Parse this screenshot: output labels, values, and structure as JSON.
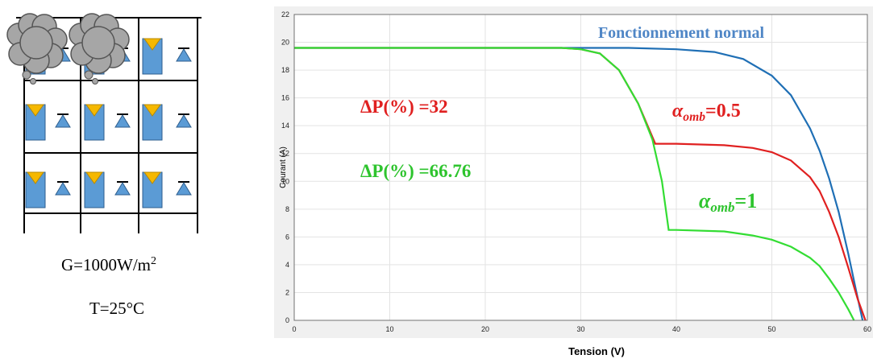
{
  "diagram": {
    "irradiance": {
      "text": "G=1000W/m",
      "superscript": "2"
    },
    "temperature": "T=25°C"
  },
  "chart_data": {
    "type": "line",
    "xlabel": "Tension (V)",
    "ylabel": "Courant (A)",
    "xlim": [
      0,
      60
    ],
    "xticks": [
      0,
      10,
      20,
      30,
      40,
      50,
      60
    ],
    "ylim": [
      0,
      22
    ],
    "yticks": [
      0,
      2,
      4,
      6,
      8,
      10,
      12,
      14,
      16,
      18,
      20,
      22
    ],
    "grid": true,
    "series": [
      {
        "color": "#1f6fb5",
        "x": [
          0,
          10,
          20,
          30,
          35,
          40,
          44,
          47,
          50,
          52,
          54,
          55,
          56,
          57,
          58,
          58.8,
          59.5
        ],
        "values": [
          19.6,
          19.6,
          19.6,
          19.6,
          19.6,
          19.5,
          19.3,
          18.8,
          17.6,
          16.2,
          13.8,
          12.2,
          10.2,
          7.8,
          4.8,
          2.2,
          0
        ]
      },
      {
        "color": "#e02020",
        "x": [
          0,
          10,
          20,
          28,
          30,
          32,
          34,
          36,
          37.8,
          40,
          45,
          48,
          50,
          52,
          54,
          55,
          56,
          57,
          58,
          59,
          59.8
        ],
        "values": [
          19.6,
          19.6,
          19.6,
          19.6,
          19.5,
          19.2,
          18.0,
          15.6,
          12.7,
          12.7,
          12.6,
          12.4,
          12.1,
          11.5,
          10.3,
          9.3,
          7.8,
          6.0,
          3.8,
          1.5,
          0
        ]
      },
      {
        "color": "#33dd33",
        "x": [
          0,
          10,
          20,
          28,
          30,
          32,
          34,
          36,
          37.5,
          38.5,
          39.2,
          40,
          45,
          48,
          50,
          52,
          54,
          55,
          56,
          57,
          58,
          58.6
        ],
        "values": [
          19.6,
          19.6,
          19.6,
          19.6,
          19.5,
          19.2,
          18.0,
          15.6,
          13.0,
          10.0,
          6.5,
          6.5,
          6.4,
          6.1,
          5.8,
          5.3,
          4.5,
          3.9,
          3.0,
          2.0,
          0.8,
          0
        ]
      }
    ],
    "annotations": [
      {
        "text": "Fonctionnement normal",
        "color": "#4f86c6"
      },
      {
        "text": "ΔP(%) =32",
        "color": "#e02020"
      },
      {
        "text": "ΔP(%) =66.76",
        "color": "#2ec42e"
      },
      {
        "symbol": "α",
        "subscript": "omb",
        "text": "=0.5",
        "color": "#e02020"
      },
      {
        "symbol": "α",
        "subscript": "omb",
        "text": "=1",
        "color": "#2ec42e"
      }
    ]
  }
}
